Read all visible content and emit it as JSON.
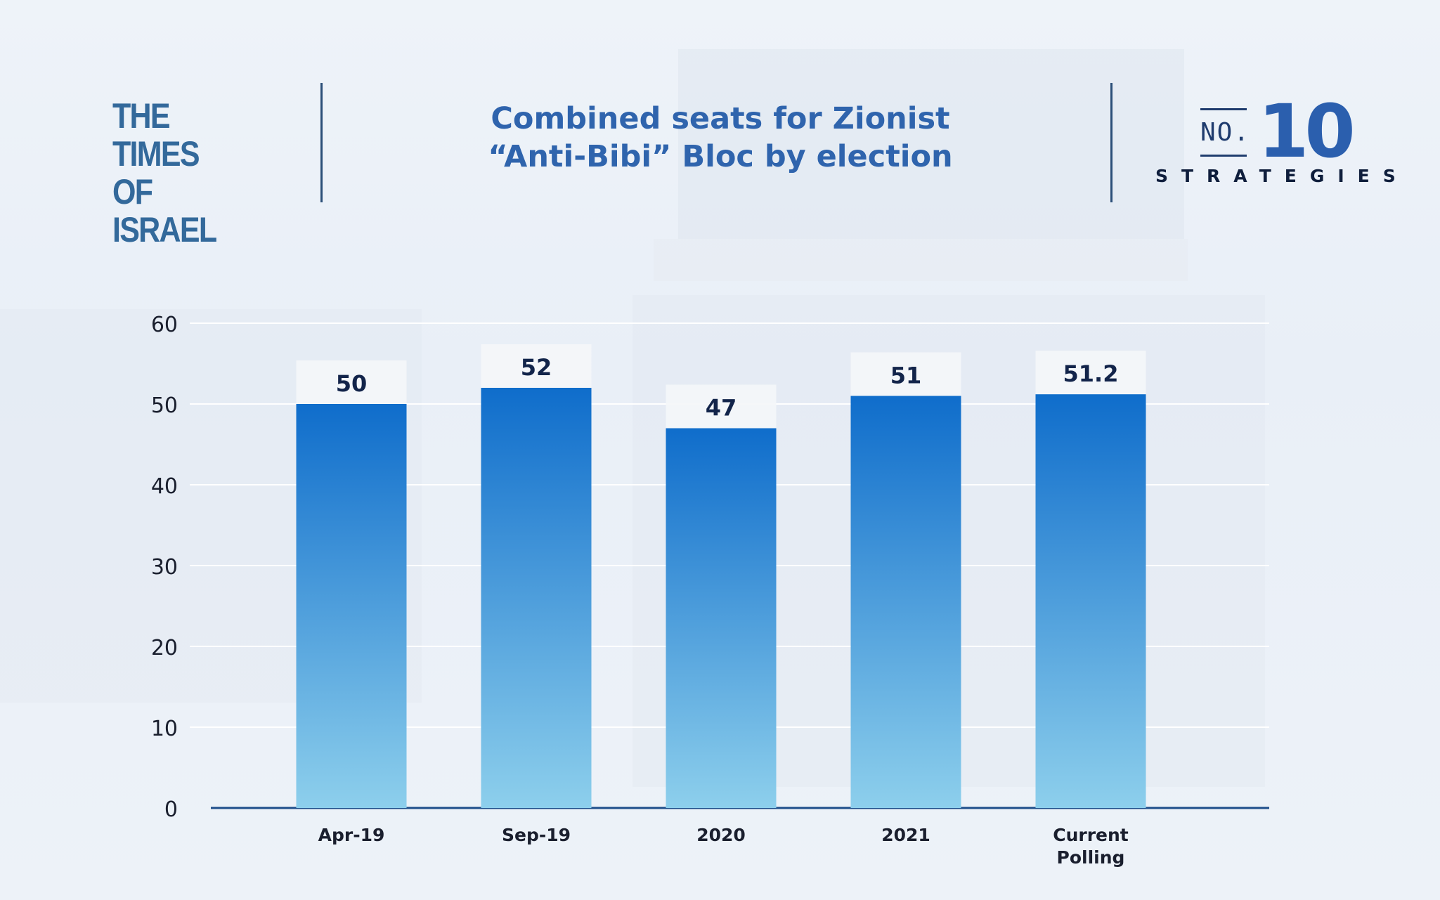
{
  "header": {
    "logo_line1": "THE TIMES",
    "logo_line2": "OF ISRAEL",
    "title_line1": "Combined seats for Zionist",
    "title_line2": "“Anti-Bibi” Bloc by election",
    "brand_no": "NO.",
    "brand_number": "10",
    "brand_sub": "STRATEGIES"
  },
  "colors": {
    "title": "#2f64ad",
    "logo": "#33699b",
    "bar_top": "#0f6dcb",
    "bar_bottom": "#8dcfec",
    "data_label": "#12244a",
    "label_bg": "#f4f6f9"
  },
  "chart_data": {
    "type": "bar",
    "title": "Combined seats for Zionist “Anti-Bibi” Bloc by election",
    "categories": [
      "Apr-19",
      "Sep-19",
      "2020",
      "2021",
      "Current Polling"
    ],
    "values": [
      50,
      52,
      47,
      51,
      51.2
    ],
    "data_labels": [
      "50",
      "52",
      "47",
      "51",
      "51.2"
    ],
    "ylim": [
      0,
      60
    ],
    "yticks": [
      0,
      10,
      20,
      30,
      40,
      50,
      60
    ],
    "grid": true,
    "xlabel": "",
    "ylabel": ""
  }
}
